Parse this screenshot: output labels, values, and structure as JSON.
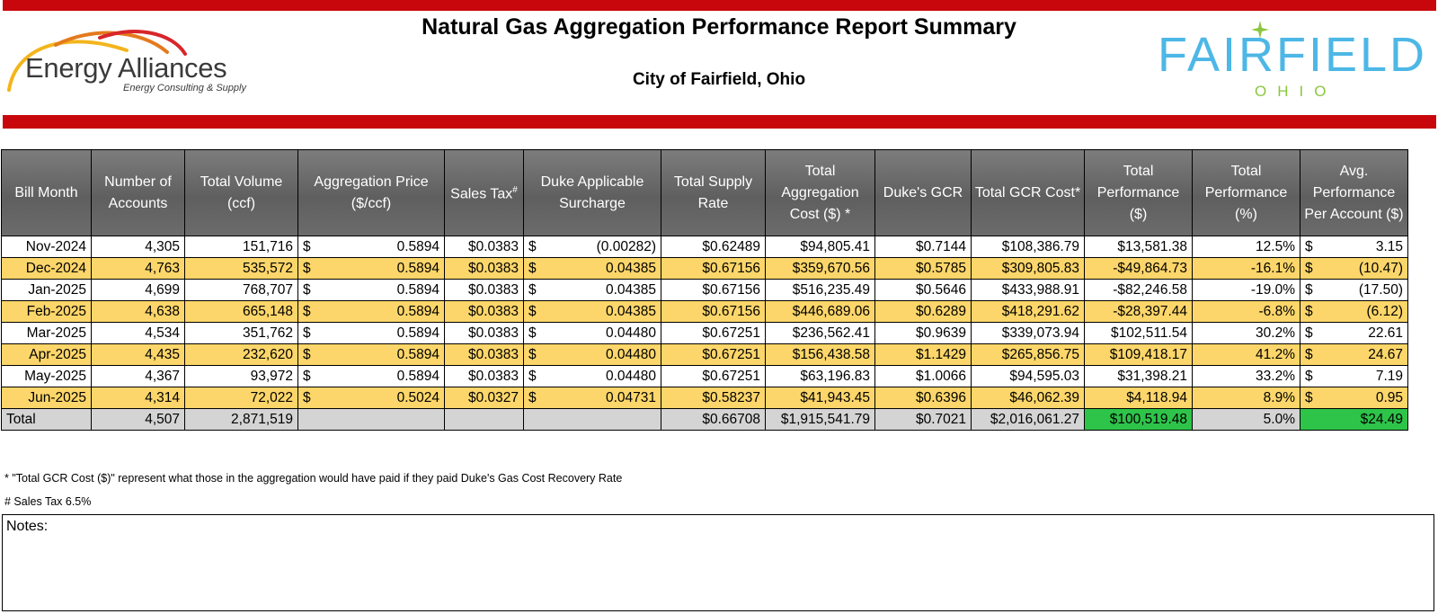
{
  "header": {
    "title": "Natural Gas Aggregation Performance Report Summary",
    "subtitle": "City of Fairfield, Ohio"
  },
  "logo_left": {
    "name": "Energy Alliances",
    "tagline": "Energy Consulting & Supply",
    "arc_colors": [
      "#f3b51b",
      "#e47a1d",
      "#d7262b"
    ]
  },
  "logo_right": {
    "name": "FAIRFIELD",
    "state": "OHIO",
    "word_color": "#4db7e6",
    "accent_color": "#8cc63f"
  },
  "colors": {
    "banner_red": "#c8070c",
    "header_gray": "#6c6c6c",
    "highlight_yellow": "#fcd66a",
    "total_gray": "#d4d4d4",
    "positive_green": "#2ec44a"
  },
  "table": {
    "headers": [
      "Bill Month",
      "Number of Accounts",
      "Total Volume (ccf)",
      "Aggregation Price ($/ccf)",
      "Sales Tax",
      "Duke Applicable Surcharge",
      "Total Supply Rate",
      "Total Aggregation Cost ($) *",
      "Duke's GCR",
      "Total GCR Cost*",
      "Total Performance ($)",
      "Total Performance (%)",
      "Avg. Performance Per Account ($)"
    ],
    "sales_tax_mark": "#",
    "currency_symbol": "$",
    "rows": [
      {
        "month": "Nov-2024",
        "accounts": "4,305",
        "volume": "151,716",
        "agg_price": "0.5894",
        "sales_tax": "$0.0383",
        "surcharge": "(0.00282)",
        "supply_rate": "$0.62489",
        "agg_cost": "$94,805.41",
        "gcr": "$0.7144",
        "gcr_cost": "$108,386.79",
        "perf_dollar": "$13,581.38",
        "perf_pct": "12.5%",
        "avg_perf": "3.15"
      },
      {
        "month": "Dec-2024",
        "accounts": "4,763",
        "volume": "535,572",
        "agg_price": "0.5894",
        "sales_tax": "$0.0383",
        "surcharge": "0.04385",
        "supply_rate": "$0.67156",
        "agg_cost": "$359,670.56",
        "gcr": "$0.5785",
        "gcr_cost": "$309,805.83",
        "perf_dollar": "-$49,864.73",
        "perf_pct": "-16.1%",
        "avg_perf": "(10.47)"
      },
      {
        "month": "Jan-2025",
        "accounts": "4,699",
        "volume": "768,707",
        "agg_price": "0.5894",
        "sales_tax": "$0.0383",
        "surcharge": "0.04385",
        "supply_rate": "$0.67156",
        "agg_cost": "$516,235.49",
        "gcr": "$0.5646",
        "gcr_cost": "$433,988.91",
        "perf_dollar": "-$82,246.58",
        "perf_pct": "-19.0%",
        "avg_perf": "(17.50)"
      },
      {
        "month": "Feb-2025",
        "accounts": "4,638",
        "volume": "665,148",
        "agg_price": "0.5894",
        "sales_tax": "$0.0383",
        "surcharge": "0.04385",
        "supply_rate": "$0.67156",
        "agg_cost": "$446,689.06",
        "gcr": "$0.6289",
        "gcr_cost": "$418,291.62",
        "perf_dollar": "-$28,397.44",
        "perf_pct": "-6.8%",
        "avg_perf": "(6.12)"
      },
      {
        "month": "Mar-2025",
        "accounts": "4,534",
        "volume": "351,762",
        "agg_price": "0.5894",
        "sales_tax": "$0.0383",
        "surcharge": "0.04480",
        "supply_rate": "$0.67251",
        "agg_cost": "$236,562.41",
        "gcr": "$0.9639",
        "gcr_cost": "$339,073.94",
        "perf_dollar": "$102,511.54",
        "perf_pct": "30.2%",
        "avg_perf": "22.61"
      },
      {
        "month": "Apr-2025",
        "accounts": "4,435",
        "volume": "232,620",
        "agg_price": "0.5894",
        "sales_tax": "$0.0383",
        "surcharge": "0.04480",
        "supply_rate": "$0.67251",
        "agg_cost": "$156,438.58",
        "gcr": "$1.1429",
        "gcr_cost": "$265,856.75",
        "perf_dollar": "$109,418.17",
        "perf_pct": "41.2%",
        "avg_perf": "24.67"
      },
      {
        "month": "May-2025",
        "accounts": "4,367",
        "volume": "93,972",
        "agg_price": "0.5894",
        "sales_tax": "$0.0383",
        "surcharge": "0.04480",
        "supply_rate": "$0.67251",
        "agg_cost": "$63,196.83",
        "gcr": "$1.0066",
        "gcr_cost": "$94,595.03",
        "perf_dollar": "$31,398.21",
        "perf_pct": "33.2%",
        "avg_perf": "7.19"
      },
      {
        "month": "Jun-2025",
        "accounts": "4,314",
        "volume": "72,022",
        "agg_price": "0.5024",
        "sales_tax": "$0.0327",
        "surcharge": "0.04731",
        "supply_rate": "$0.58237",
        "agg_cost": "$41,943.45",
        "gcr": "$0.6396",
        "gcr_cost": "$46,062.39",
        "perf_dollar": "$4,118.94",
        "perf_pct": "8.9%",
        "avg_perf": "0.95"
      }
    ],
    "total": {
      "label": "Total",
      "accounts": "4,507",
      "volume": "2,871,519",
      "supply_rate": "$0.66708",
      "agg_cost": "$1,915,541.79",
      "gcr": "$0.7021",
      "gcr_cost": "$2,016,061.27",
      "perf_dollar": "$100,519.48",
      "perf_pct": "5.0%",
      "avg_perf": "$24.49"
    }
  },
  "footnotes": {
    "gcr_note": "* \"Total GCR Cost ($)\" represent what those in the aggregation would have paid if they paid Duke's Gas Cost Recovery Rate",
    "tax_note": "# Sales Tax  6.5%"
  },
  "notes": {
    "label": "Notes:",
    "value": ""
  }
}
